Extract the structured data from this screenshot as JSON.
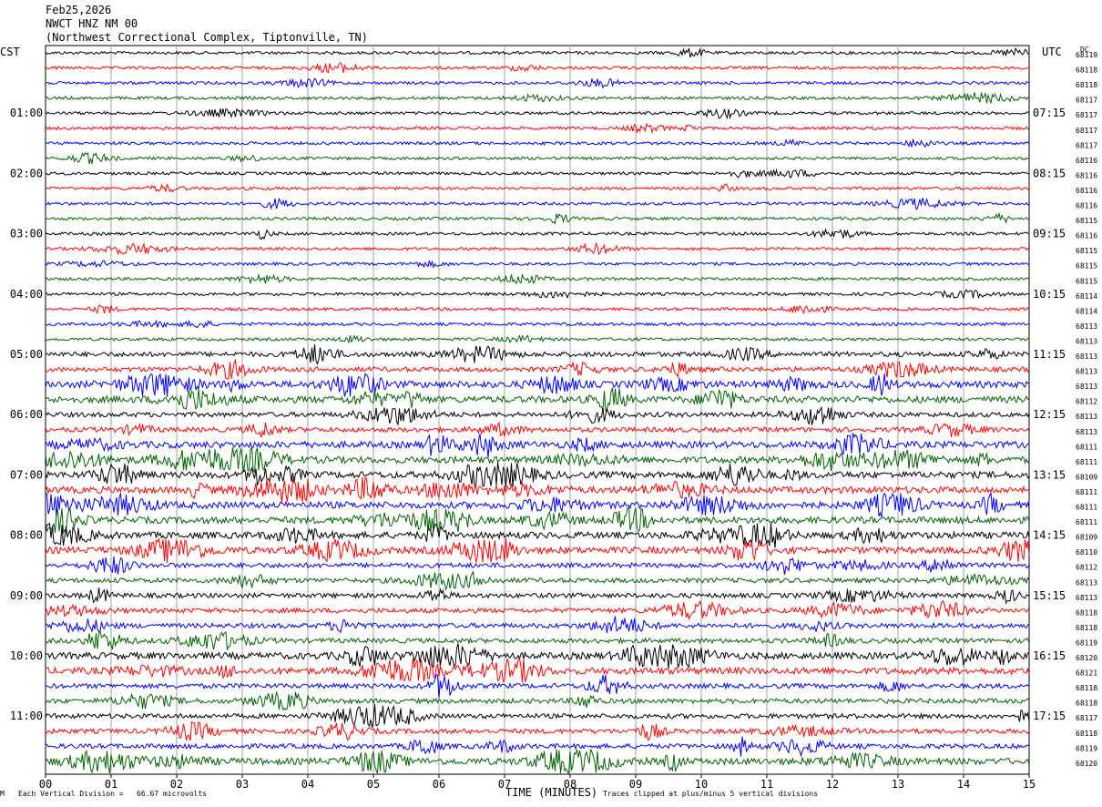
{
  "header": {
    "date": "Feb25,2026",
    "station": "NWCT HNZ NM 00",
    "location": "(Northwest Correctional Complex, Tiptonville, TN)"
  },
  "left_zone": "CST",
  "right_zone": "UTC",
  "dc_label": "DC",
  "footer": {
    "scale_note": "Each Vertical Division =   66.67 microvolts",
    "clip_note": "Traces clipped at plus/minus 5 vertical divisions",
    "corner_mark": "M"
  },
  "colors": {
    "trace_cycle": [
      "#000000",
      "#ff0000",
      "#0000ff",
      "#006400"
    ],
    "grid": "#a0a0a0"
  },
  "chart_data": {
    "type": "line",
    "title": "",
    "xlabel": "TIME (MINUTES)",
    "xlim": [
      0,
      15
    ],
    "x_ticks": [
      "00",
      "01",
      "02",
      "03",
      "04",
      "05",
      "06",
      "07",
      "08",
      "09",
      "10",
      "11",
      "12",
      "13",
      "14",
      "15"
    ],
    "left_hour_labels": [
      {
        "row": 4,
        "text": "01:00"
      },
      {
        "row": 8,
        "text": "02:00"
      },
      {
        "row": 12,
        "text": "03:00"
      },
      {
        "row": 16,
        "text": "04:00"
      },
      {
        "row": 20,
        "text": "05:00"
      },
      {
        "row": 24,
        "text": "06:00"
      },
      {
        "row": 28,
        "text": "07:00"
      },
      {
        "row": 32,
        "text": "08:00"
      },
      {
        "row": 36,
        "text": "09:00"
      },
      {
        "row": 40,
        "text": "10:00"
      },
      {
        "row": 44,
        "text": "11:00"
      }
    ],
    "right_hour_labels": [
      {
        "row": 4,
        "text": "07:15"
      },
      {
        "row": 8,
        "text": "08:15"
      },
      {
        "row": 12,
        "text": "09:15"
      },
      {
        "row": 16,
        "text": "10:15"
      },
      {
        "row": 20,
        "text": "11:15"
      },
      {
        "row": 24,
        "text": "12:15"
      },
      {
        "row": 28,
        "text": "13:15"
      },
      {
        "row": 32,
        "text": "14:15"
      },
      {
        "row": 36,
        "text": "15:15"
      },
      {
        "row": 40,
        "text": "16:15"
      },
      {
        "row": 44,
        "text": "17:15"
      }
    ],
    "dc_offsets": [
      "68119",
      "68118",
      "68118",
      "68117",
      "68117",
      "68117",
      "68117",
      "68116",
      "68116",
      "68116",
      "68116",
      "68115",
      "68116",
      "68115",
      "68115",
      "68115",
      "68114",
      "68114",
      "68113",
      "68113",
      "68113",
      "68113",
      "68113",
      "68112",
      "68113",
      "68113",
      "68111",
      "68111",
      "68109",
      "68111",
      "68111",
      "68111",
      "68109",
      "68110",
      "68112",
      "68113",
      "68113",
      "68118",
      "68118",
      "68119",
      "68120",
      "68121",
      "68118",
      "68118",
      "68117",
      "68118",
      "68119",
      "68120"
    ],
    "trace_activity": [
      1,
      1,
      1,
      1,
      1,
      1,
      1,
      1,
      1,
      1,
      1,
      1,
      1,
      1,
      1,
      1,
      1,
      1,
      1,
      1,
      2,
      2,
      3,
      3,
      2,
      2,
      3,
      3,
      3,
      3,
      3,
      3,
      3,
      3,
      2,
      2,
      2,
      2,
      2,
      2,
      3,
      3,
      2,
      2,
      2,
      2,
      2,
      3
    ]
  }
}
